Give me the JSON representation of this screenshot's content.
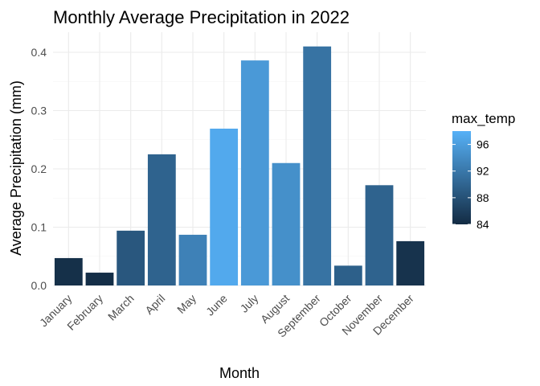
{
  "chart_data": {
    "type": "bar",
    "title": "Monthly Average Precipitation in 2022",
    "xlabel": "Month",
    "ylabel": "Average Precipitation (mm)",
    "categories": [
      "January",
      "February",
      "March",
      "April",
      "May",
      "June",
      "July",
      "August",
      "September",
      "October",
      "November",
      "December"
    ],
    "values": [
      0.047,
      0.022,
      0.094,
      0.225,
      0.087,
      0.269,
      0.386,
      0.21,
      0.41,
      0.034,
      0.172,
      0.076
    ],
    "fill_variable": "max_temp",
    "fill_values": [
      84.5,
      84.3,
      88.6,
      89.8,
      93.0,
      97.2,
      95.5,
      94.5,
      91.5,
      89.5,
      89.8,
      84.8
    ],
    "ylim": [
      0,
      0.43
    ],
    "yticks": [
      0.0,
      0.1,
      0.2,
      0.3,
      0.4
    ],
    "ytick_labels": [
      "0.0",
      "0.1",
      "0.2",
      "0.3",
      "0.4"
    ],
    "grid": true,
    "legend": {
      "title": "max_temp",
      "position": "right",
      "type": "colorbar",
      "range": [
        84,
        98
      ],
      "ticks": [
        84,
        88,
        92,
        96
      ],
      "tick_labels": [
        "84",
        "88",
        "92",
        "96"
      ],
      "low_color": "#132B43",
      "high_color": "#56B1F7"
    }
  }
}
